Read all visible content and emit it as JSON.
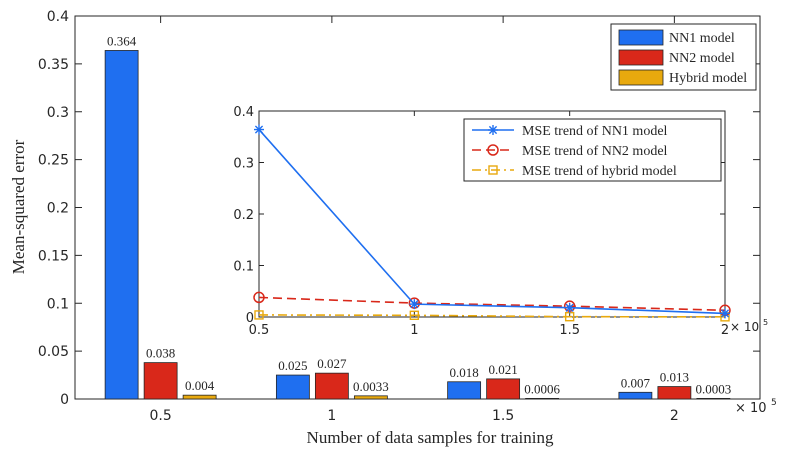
{
  "chart_data": [
    {
      "type": "bar",
      "title": "",
      "xlabel": "Number of data samples for training",
      "ylabel": "Mean-squared error",
      "x_exponent_label": "× 10",
      "x_exponent_power": "5",
      "ylim": [
        0,
        0.4
      ],
      "yticks": [
        0,
        0.05,
        0.1,
        0.15,
        0.2,
        0.25,
        0.3,
        0.35,
        0.4
      ],
      "ytick_labels": [
        "0",
        "0.05",
        "0.1",
        "0.15",
        "0.2",
        "0.25",
        "0.3",
        "0.35",
        "0.4"
      ],
      "categories": [
        "0.5",
        "1",
        "1.5",
        "2"
      ],
      "series": [
        {
          "name": "NN1 model",
          "color": "#1f6ff0",
          "values": [
            0.364,
            0.025,
            0.018,
            0.007
          ],
          "labels": [
            "0.364",
            "0.025",
            "0.018",
            "0.007"
          ]
        },
        {
          "name": "NN2 model",
          "color": "#d9281a",
          "values": [
            0.038,
            0.027,
            0.021,
            0.013
          ],
          "labels": [
            "0.038",
            "0.027",
            "0.021",
            "0.013"
          ]
        },
        {
          "name": "Hybrid model",
          "color": "#e8a90e",
          "values": [
            0.004,
            0.0033,
            0.0006,
            0.0003
          ],
          "labels": [
            "0.004",
            "0.0033",
            "0.0006",
            "0.0003"
          ]
        }
      ],
      "legend_position": "top-right"
    },
    {
      "type": "line",
      "title": "",
      "x": [
        0.5,
        1,
        1.5,
        2
      ],
      "xtick_labels": [
        "0.5",
        "1",
        "1.5",
        "2"
      ],
      "x_exponent_label": "× 10",
      "x_exponent_power": "5",
      "xlim": [
        0.5,
        2
      ],
      "ylim": [
        0,
        0.4
      ],
      "yticks": [
        0,
        0.1,
        0.2,
        0.3,
        0.4
      ],
      "ytick_labels": [
        "0",
        "0.1",
        "0.2",
        "0.3",
        "0.4"
      ],
      "series": [
        {
          "name": "MSE trend of NN1 model",
          "color": "#1f6ff0",
          "style": "solid",
          "marker": "asterisk",
          "values": [
            0.364,
            0.025,
            0.018,
            0.007
          ]
        },
        {
          "name": "MSE trend of NN2 model",
          "color": "#d9281a",
          "style": "dashed",
          "marker": "circle",
          "values": [
            0.038,
            0.027,
            0.021,
            0.013
          ]
        },
        {
          "name": "MSE trend of hybrid model",
          "color": "#e8a90e",
          "style": "dashdot",
          "marker": "square",
          "values": [
            0.004,
            0.0033,
            0.0006,
            0.0003
          ]
        }
      ],
      "legend_position": "top-right"
    }
  ]
}
